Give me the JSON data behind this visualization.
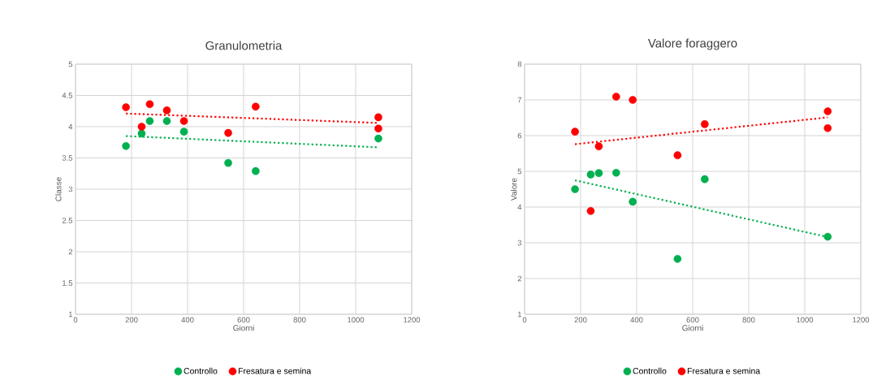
{
  "chart_data": [
    {
      "type": "scatter",
      "title": "Granulometria",
      "xlabel": "Giorni",
      "ylabel": "Classe",
      "xlim": [
        0,
        1200
      ],
      "ylim": [
        1,
        5
      ],
      "xticks": [
        0,
        200,
        400,
        600,
        800,
        1000,
        1200
      ],
      "yticks": [
        1,
        1.5,
        2,
        2.5,
        3,
        3.5,
        4,
        4.5,
        5
      ],
      "grid": true,
      "legend": "bottom",
      "series": [
        {
          "name": "Controllo",
          "color": "#00b050",
          "x": [
            180,
            236,
            265,
            326,
            387,
            545,
            643,
            1081
          ],
          "values": [
            3.69,
            3.89,
            4.09,
            4.09,
            3.92,
            3.42,
            3.29,
            3.81
          ]
        },
        {
          "name": "Fresatura e semina",
          "color": "#ff0000",
          "x": [
            180,
            236,
            265,
            326,
            387,
            545,
            643,
            1081,
            1081
          ],
          "values": [
            4.31,
            4.0,
            4.36,
            4.26,
            4.09,
            3.9,
            4.32,
            4.15,
            3.97
          ]
        },
        {
          "type": "line",
          "color": "#00b050",
          "line_style": "dotted",
          "x": [
            180,
            1081
          ],
          "values": [
            3.85,
            3.67
          ]
        },
        {
          "type": "line",
          "color": "#ff0000",
          "line_style": "dotted",
          "x": [
            180,
            1081
          ],
          "values": [
            4.21,
            4.06
          ]
        }
      ]
    },
    {
      "type": "scatter",
      "title": "Valore foraggero",
      "xlabel": "Giorni",
      "ylabel": "Valore",
      "xlim": [
        0,
        1200
      ],
      "ylim": [
        1,
        8
      ],
      "xticks": [
        0,
        200,
        400,
        600,
        800,
        1000,
        1200
      ],
      "yticks": [
        1,
        2,
        3,
        4,
        5,
        6,
        7,
        8
      ],
      "grid": true,
      "legend": "bottom",
      "series": [
        {
          "name": "Controllo",
          "color": "#00b050",
          "x": [
            180,
            236,
            265,
            327,
            386,
            546,
            643,
            1082
          ],
          "values": [
            4.5,
            4.91,
            4.95,
            4.96,
            4.15,
            2.55,
            4.78,
            3.17
          ]
        },
        {
          "name": "Fresatura e semina",
          "color": "#ff0000",
          "x": [
            180,
            236,
            265,
            327,
            386,
            546,
            643,
            1082,
            1082
          ],
          "values": [
            6.11,
            3.89,
            5.7,
            7.09,
            7.0,
            5.45,
            6.32,
            6.68,
            6.21
          ]
        },
        {
          "type": "line",
          "color": "#00b050",
          "line_style": "dotted",
          "x": [
            180,
            1082
          ],
          "values": [
            4.75,
            3.16
          ]
        },
        {
          "type": "line",
          "color": "#ff0000",
          "line_style": "dotted",
          "x": [
            180,
            1082
          ],
          "values": [
            5.76,
            6.51
          ]
        }
      ]
    }
  ]
}
